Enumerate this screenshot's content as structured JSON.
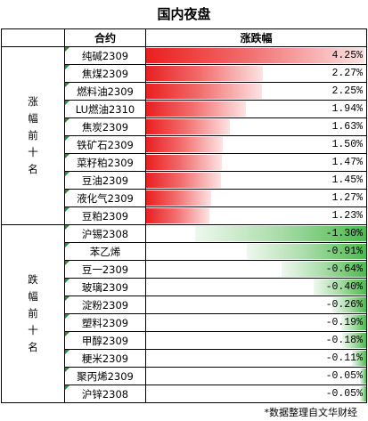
{
  "title": "国内夜盘",
  "headers": {
    "contract": "合约",
    "change": "涨跌幅"
  },
  "groups": {
    "top": "涨幅前十名",
    "bottom": "跌幅前十名"
  },
  "gainers": [
    {
      "name": "纯碱2309",
      "change": "4.25%",
      "value": 4.25
    },
    {
      "name": "焦煤2309",
      "change": "2.27%",
      "value": 2.27
    },
    {
      "name": "燃料油2309",
      "change": "2.25%",
      "value": 2.25
    },
    {
      "name": "LU燃油2310",
      "change": "1.94%",
      "value": 1.94
    },
    {
      "name": "焦炭2309",
      "change": "1.63%",
      "value": 1.63
    },
    {
      "name": "铁矿石2309",
      "change": "1.50%",
      "value": 1.5
    },
    {
      "name": "菜籽粕2309",
      "change": "1.47%",
      "value": 1.47
    },
    {
      "name": "豆油2309",
      "change": "1.45%",
      "value": 1.45
    },
    {
      "name": "液化气2309",
      "change": "1.27%",
      "value": 1.27
    },
    {
      "name": "豆粕2309",
      "change": "1.23%",
      "value": 1.23
    }
  ],
  "losers": [
    {
      "name": "沪锡2308",
      "change": "-1.30%",
      "value": -1.3
    },
    {
      "name": "苯乙烯",
      "change": "-0.91%",
      "value": -0.91
    },
    {
      "name": "豆一2309",
      "change": "-0.64%",
      "value": -0.64
    },
    {
      "name": "玻璃2309",
      "change": "-0.40%",
      "value": -0.4
    },
    {
      "name": "淀粉2309",
      "change": "-0.26%",
      "value": -0.26
    },
    {
      "name": "塑料2309",
      "change": "-0.19%",
      "value": -0.19
    },
    {
      "name": "甲醇2309",
      "change": "-0.18%",
      "value": -0.18
    },
    {
      "name": "粳米2309",
      "change": "-0.11%",
      "value": -0.11
    },
    {
      "name": "聚丙烯2309",
      "change": "-0.05%",
      "value": -0.05
    },
    {
      "name": "沪锌2308",
      "change": "-0.05%",
      "value": -0.05
    }
  ],
  "footnote": "*数据整理自文华财经",
  "colors": {
    "gain": "#e8201f",
    "loss": "#4dba4d"
  }
}
